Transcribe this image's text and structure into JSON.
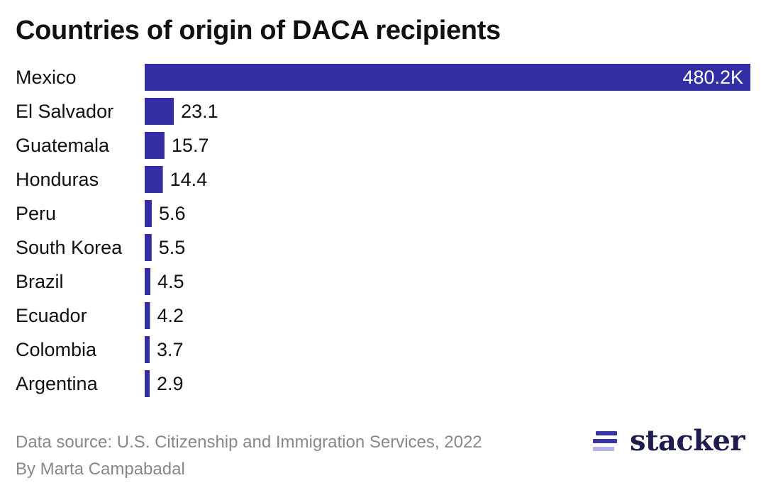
{
  "title": "Countries of origin of DACA recipients",
  "footer": {
    "source": "Data source: U.S. Citizenship and Immigration Services, 2022",
    "author": "By Marta Campabadal"
  },
  "logo": {
    "text": "stacker",
    "icon": "stacker-stripes-icon"
  },
  "colors": {
    "bar": "#332ea3",
    "logo_dark": "#3a34a3",
    "logo_light": "#b7b3e6"
  },
  "chart_data": {
    "type": "bar",
    "orientation": "horizontal",
    "title": "Countries of origin of DACA recipients",
    "categories": [
      "Mexico",
      "El Salvador",
      "Guatemala",
      "Honduras",
      "Peru",
      "South Korea",
      "Brazil",
      "Ecuador",
      "Colombia",
      "Argentina"
    ],
    "values": [
      480.2,
      23.1,
      15.7,
      14.4,
      5.6,
      5.5,
      4.5,
      4.2,
      3.7,
      2.9
    ],
    "value_labels": [
      "480.2K",
      "23.1",
      "15.7",
      "14.4",
      "5.6",
      "5.5",
      "4.5",
      "4.2",
      "3.7",
      "2.9"
    ],
    "xlim": [
      0,
      480.2
    ],
    "grid": false,
    "legend": "none"
  }
}
